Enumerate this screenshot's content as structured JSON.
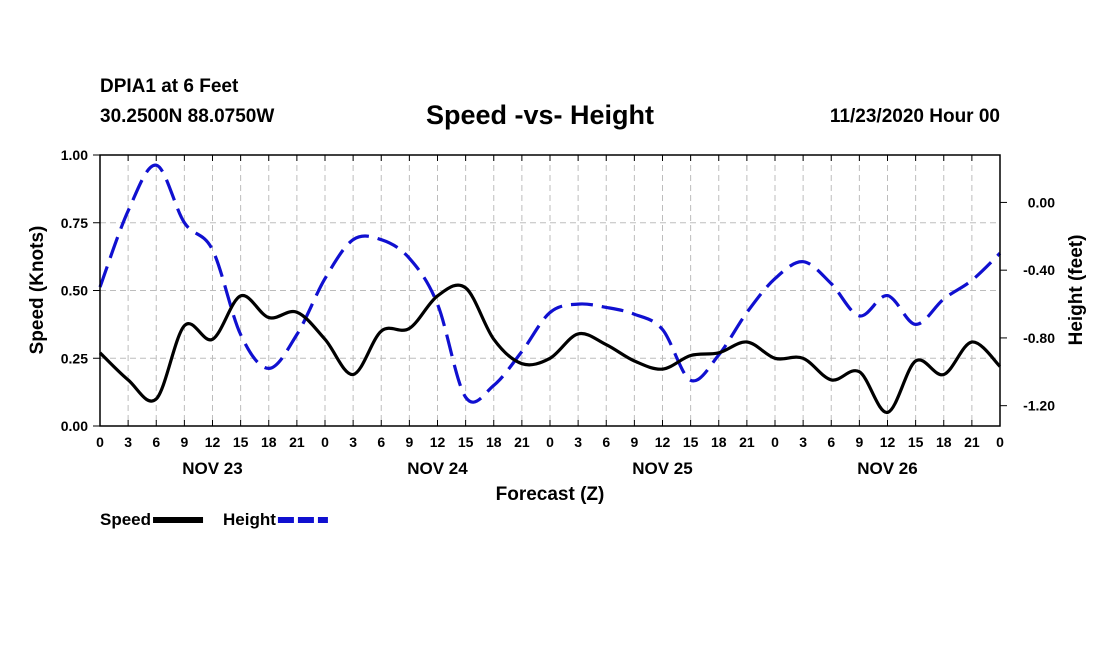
{
  "header": {
    "station": "DPIA1 at 6 Feet",
    "coords": "30.2500N 88.0750W",
    "title": "Speed -vs- Height",
    "stamp": "11/23/2020 Hour 00"
  },
  "chart_data": {
    "type": "line",
    "title": "Speed -vs- Height",
    "xlabel": "Forecast (Z)",
    "ylabel_left": "Speed (Knots)",
    "ylabel_right": "Height (feet)",
    "x_ticks": [
      "0",
      "3",
      "6",
      "9",
      "12",
      "15",
      "18",
      "21",
      "0",
      "3",
      "6",
      "9",
      "12",
      "15",
      "18",
      "21",
      "0",
      "3",
      "6",
      "9",
      "12",
      "15",
      "18",
      "21",
      "0",
      "3",
      "6",
      "9",
      "12",
      "15",
      "18",
      "21",
      "0"
    ],
    "day_labels": [
      {
        "label": "NOV 23",
        "hour": 12
      },
      {
        "label": "NOV 24",
        "hour": 36
      },
      {
        "label": "NOV 25",
        "hour": 60
      },
      {
        "label": "NOV 26",
        "hour": 84
      }
    ],
    "xlim": [
      0,
      96
    ],
    "ylim_left": [
      0,
      1.0
    ],
    "left_ticks": [
      "0.00",
      "0.25",
      "0.50",
      "0.75",
      "1.00"
    ],
    "ylim_right": [
      -1.32,
      0.28
    ],
    "right_ticks": [
      "0.00",
      "-0.40",
      "-0.80",
      "-1.20"
    ],
    "grid": true,
    "series": [
      {
        "name": "Speed",
        "axis": "left",
        "color": "#000000",
        "dash": "solid",
        "x": [
          0,
          3,
          6,
          9,
          12,
          15,
          18,
          21,
          24,
          27,
          30,
          33,
          36,
          39,
          42,
          45,
          48,
          51,
          54,
          57,
          60,
          63,
          66,
          69,
          72,
          75,
          78,
          81,
          84,
          87,
          90,
          93,
          96
        ],
        "y": [
          0.27,
          0.17,
          0.1,
          0.37,
          0.32,
          0.48,
          0.4,
          0.42,
          0.32,
          0.19,
          0.35,
          0.36,
          0.48,
          0.51,
          0.32,
          0.23,
          0.25,
          0.34,
          0.3,
          0.24,
          0.21,
          0.26,
          0.27,
          0.31,
          0.25,
          0.25,
          0.17,
          0.2,
          0.05,
          0.24,
          0.19,
          0.31,
          0.22
        ]
      },
      {
        "name": "Height",
        "axis": "right",
        "color": "#1010d0",
        "dash": "dashed",
        "x": [
          0,
          3,
          6,
          9,
          12,
          15,
          18,
          21,
          24,
          27,
          30,
          33,
          36,
          39,
          42,
          45,
          48,
          51,
          54,
          57,
          60,
          63,
          66,
          69,
          72,
          75,
          78,
          81,
          84,
          87,
          90,
          93,
          96
        ],
        "y": [
          -0.5,
          -0.05,
          0.22,
          -0.12,
          -0.28,
          -0.78,
          -0.98,
          -0.78,
          -0.45,
          -0.22,
          -0.22,
          -0.33,
          -0.6,
          -1.15,
          -1.08,
          -0.88,
          -0.65,
          -0.6,
          -0.62,
          -0.66,
          -0.75,
          -1.05,
          -0.9,
          -0.65,
          -0.45,
          -0.35,
          -0.48,
          -0.67,
          -0.55,
          -0.72,
          -0.57,
          -0.46,
          -0.3
        ]
      }
    ],
    "legend": [
      {
        "label": "Speed",
        "color": "#000000",
        "dash": "solid"
      },
      {
        "label": "Height",
        "color": "#1010d0",
        "dash": "dashed"
      }
    ]
  }
}
